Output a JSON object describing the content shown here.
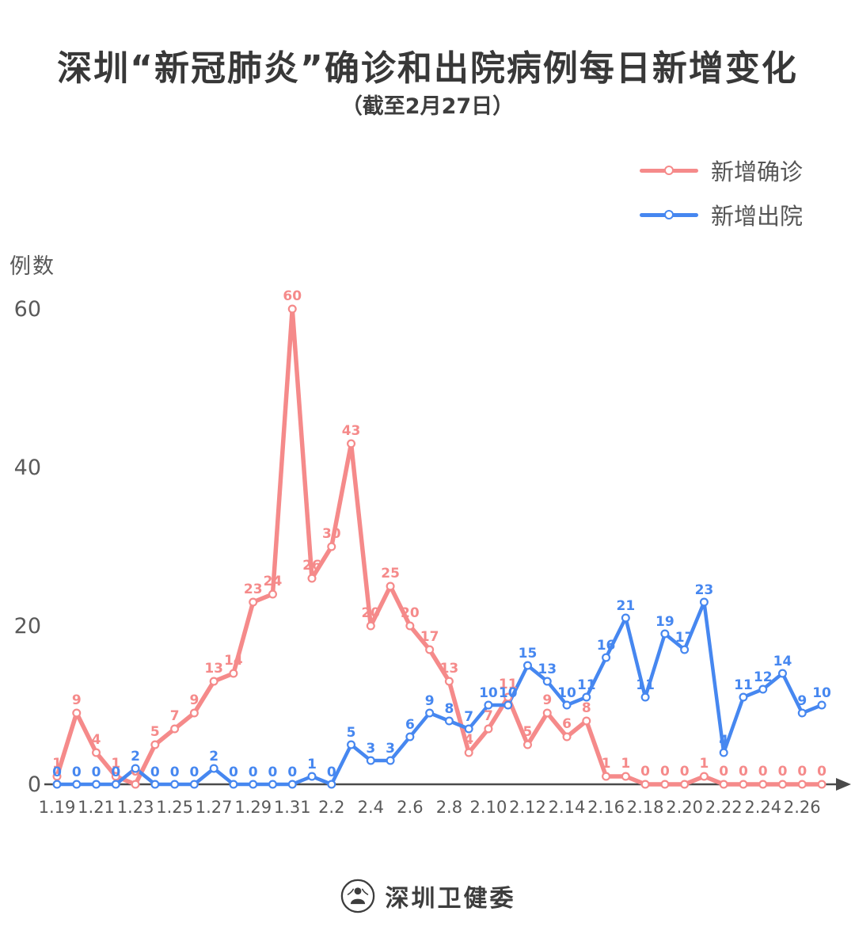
{
  "header": {
    "title": "深圳“新冠肺炎”确诊和出院病例每日新增变化",
    "subtitle": "（截至2月27日）"
  },
  "legend": {
    "items": [
      {
        "label": "新增确诊",
        "color": "#f58a8a"
      },
      {
        "label": "新增出院",
        "color": "#4687f0"
      }
    ]
  },
  "footer": {
    "source": "深圳卫健委"
  },
  "chart_data": {
    "type": "line",
    "title": "深圳“新冠肺炎”确诊和出院病例每日新增变化",
    "subtitle": "（截至2月27日）",
    "ylabel": "例数",
    "xlabel": "",
    "ylim": [
      0,
      60
    ],
    "yticks": [
      0,
      20,
      40,
      60
    ],
    "grid": false,
    "legend_position": "top-right",
    "xtick_every": 2,
    "x": [
      "1.19",
      "1.20",
      "1.21",
      "1.22",
      "1.23",
      "1.24",
      "1.25",
      "1.26",
      "1.27",
      "1.28",
      "1.29",
      "1.30",
      "1.31",
      "2.1",
      "2.2",
      "2.3",
      "2.4",
      "2.5",
      "2.6",
      "2.7",
      "2.8",
      "2.9",
      "2.10",
      "2.11",
      "2.12",
      "2.13",
      "2.14",
      "2.15",
      "2.16",
      "2.17",
      "2.18",
      "2.19",
      "2.20",
      "2.21",
      "2.22",
      "2.23",
      "2.24",
      "2.25",
      "2.26",
      "2.27"
    ],
    "series": [
      {
        "name": "新增确诊",
        "color": "#f58a8a",
        "values": [
          1,
          9,
          4,
          1,
          0,
          5,
          7,
          9,
          13,
          14,
          23,
          24,
          60,
          26,
          30,
          43,
          20,
          25,
          20,
          17,
          13,
          4,
          7,
          11,
          5,
          9,
          6,
          8,
          1,
          1,
          0,
          0,
          0,
          1,
          0,
          0,
          0,
          0,
          0,
          0
        ]
      },
      {
        "name": "新增出院",
        "color": "#4687f0",
        "values": [
          0,
          0,
          0,
          0,
          2,
          0,
          0,
          0,
          2,
          0,
          0,
          0,
          0,
          1,
          0,
          5,
          3,
          3,
          6,
          9,
          8,
          7,
          10,
          10,
          15,
          13,
          10,
          11,
          16,
          21,
          11,
          19,
          17,
          23,
          4,
          11,
          12,
          14,
          9,
          10
        ]
      }
    ]
  }
}
